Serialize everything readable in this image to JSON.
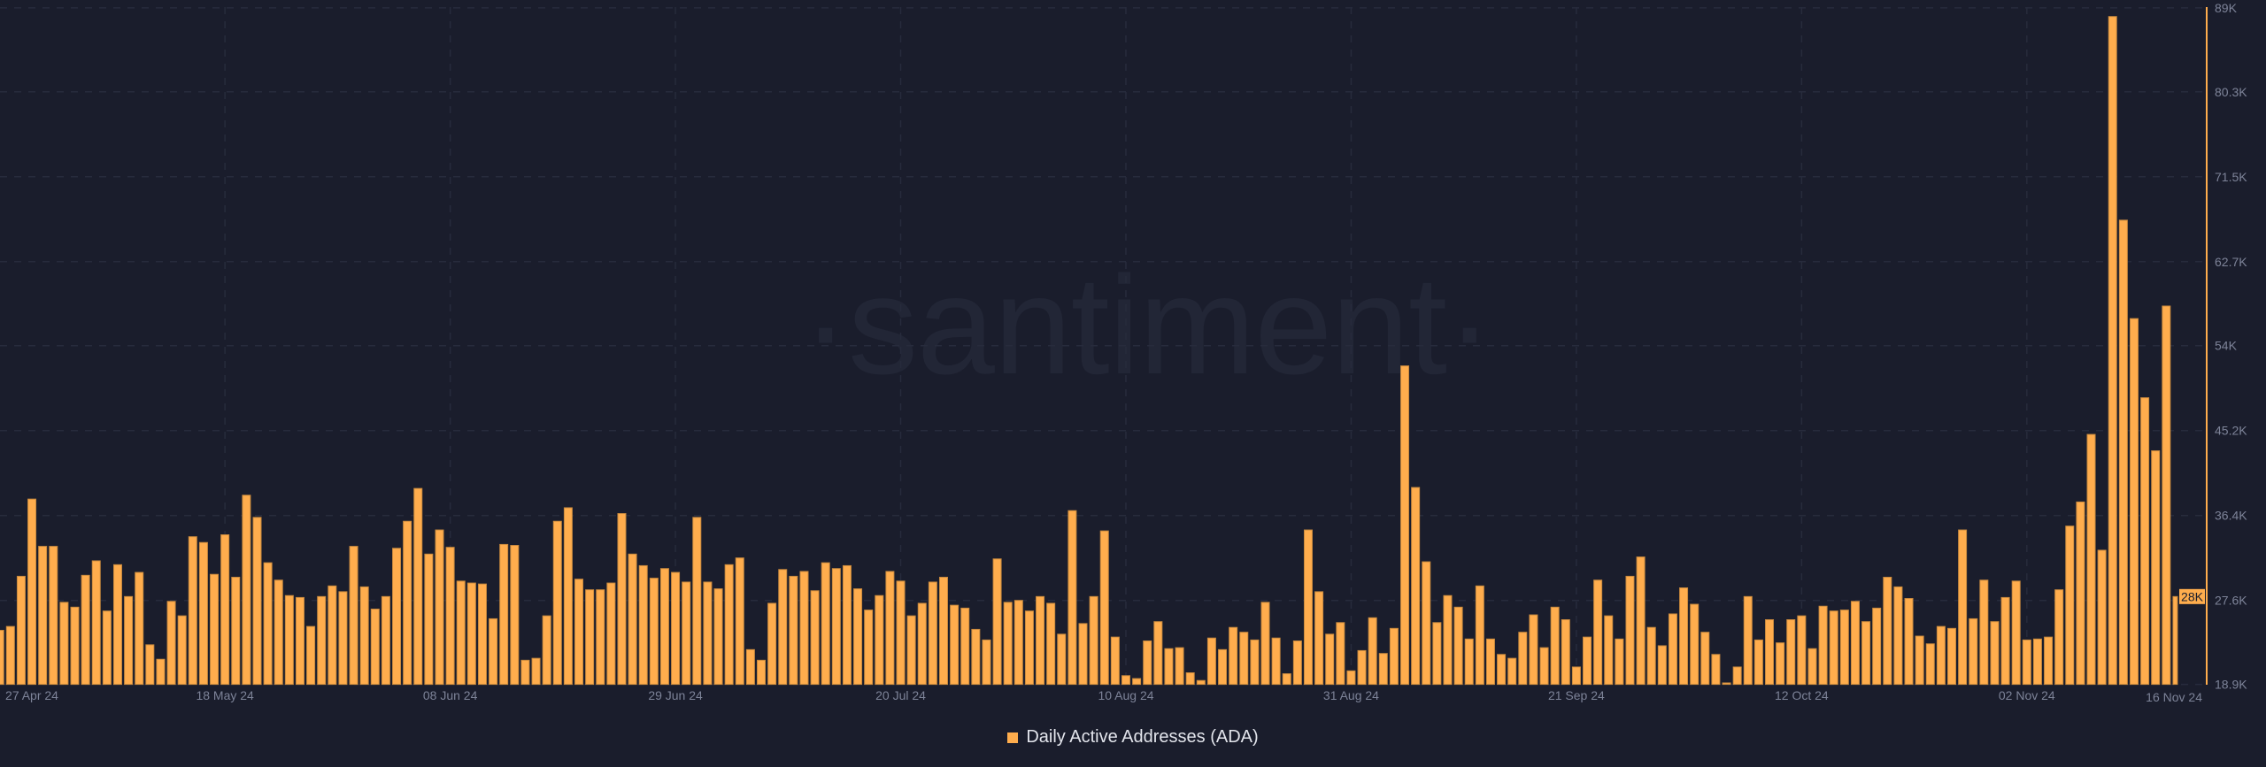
{
  "watermark": "·santiment·",
  "legend": {
    "label": "Daily Active Addresses (ADA)",
    "color": "#ffad4d"
  },
  "current_value_badge": "28K",
  "chart_data": {
    "type": "bar",
    "title": "",
    "xlabel": "",
    "ylabel": "",
    "series": [
      {
        "name": "Daily Active Addresses (ADA)",
        "color": "#ffad4d",
        "values": [
          24.5,
          24.9,
          30.1,
          38.1,
          33.2,
          33.2,
          27.4,
          26.9,
          30.2,
          31.7,
          26.5,
          31.3,
          28.0,
          30.5,
          23.0,
          21.5,
          27.5,
          26.0,
          34.2,
          33.6,
          30.3,
          34.4,
          30.0,
          38.5,
          36.2,
          31.5,
          29.7,
          28.1,
          27.9,
          24.9,
          28.0,
          29.1,
          28.5,
          33.2,
          29.0,
          26.7,
          28.0,
          33.0,
          35.8,
          39.2,
          32.4,
          34.9,
          33.1,
          29.6,
          29.4,
          29.3,
          25.7,
          33.4,
          33.3,
          21.4,
          21.6,
          26.0,
          35.8,
          37.2,
          29.8,
          28.7,
          28.7,
          29.4,
          36.6,
          32.4,
          31.2,
          29.9,
          30.9,
          30.5,
          29.5,
          36.2,
          29.5,
          28.8,
          31.3,
          32.0,
          22.5,
          21.4,
          27.3,
          30.8,
          30.1,
          30.6,
          28.6,
          31.5,
          30.9,
          31.2,
          28.8,
          26.6,
          28.1,
          30.6,
          29.6,
          26.0,
          27.3,
          29.5,
          30.0,
          27.1,
          26.8,
          24.6,
          23.5,
          31.9,
          27.4,
          27.6,
          26.5,
          28.0,
          27.3,
          24.1,
          36.9,
          25.2,
          28.0,
          34.8,
          23.8,
          19.8,
          19.5,
          23.4,
          25.4,
          22.6,
          22.7,
          20.1,
          19.3,
          23.7,
          22.5,
          24.8,
          24.3,
          23.5,
          27.4,
          23.7,
          20.0,
          23.4,
          34.9,
          28.5,
          24.1,
          25.3,
          20.3,
          22.4,
          25.8,
          22.1,
          24.7,
          51.9,
          39.3,
          31.6,
          25.3,
          28.1,
          26.9,
          23.6,
          29.1,
          23.6,
          22.0,
          21.6,
          24.3,
          26.1,
          22.7,
          26.9,
          25.6,
          20.7,
          23.8,
          29.7,
          26.0,
          23.6,
          30.1,
          32.1,
          24.8,
          22.9,
          26.2,
          28.9,
          27.2,
          24.3,
          22.0,
          19.05,
          20.7,
          28.0,
          23.5,
          25.6,
          23.2,
          25.6,
          26.0,
          22.6,
          27.0,
          26.5,
          26.6,
          27.5,
          25.4,
          26.8,
          30.0,
          29.0,
          27.8,
          23.9,
          23.1,
          24.9,
          24.7,
          34.9,
          25.7,
          29.7,
          25.4,
          27.9,
          29.6,
          23.5,
          23.6,
          23.8,
          28.7,
          35.3,
          37.8,
          44.8,
          32.8,
          88.1,
          67.0,
          56.8,
          48.6,
          43.1,
          58.1,
          28.0
        ]
      }
    ],
    "value_unit": "thousands",
    "ylim": [
      18.9,
      89
    ],
    "y_ticks": [
      "18.9K",
      "27.6K",
      "36.4K",
      "45.2K",
      "54K",
      "62.7K",
      "71.5K",
      "80.3K",
      "89K"
    ],
    "y_tick_values": [
      18.9,
      27.6,
      36.4,
      45.2,
      54,
      62.7,
      71.5,
      80.3,
      89
    ],
    "x_ticks": [
      "27 Apr 24",
      "18 May 24",
      "08 Jun 24",
      "29 Jun 24",
      "20 Jul 24",
      "10 Aug 24",
      "31 Aug 24",
      "21 Sep 24",
      "12 Oct 24",
      "02 Nov 24"
    ],
    "x_tick_interval_days": 21,
    "x_end_label": "16 Nov 24",
    "grid": true,
    "y_axis_position": "right",
    "legend_position": "bottom-center",
    "axis_color": "#ffad4d"
  }
}
